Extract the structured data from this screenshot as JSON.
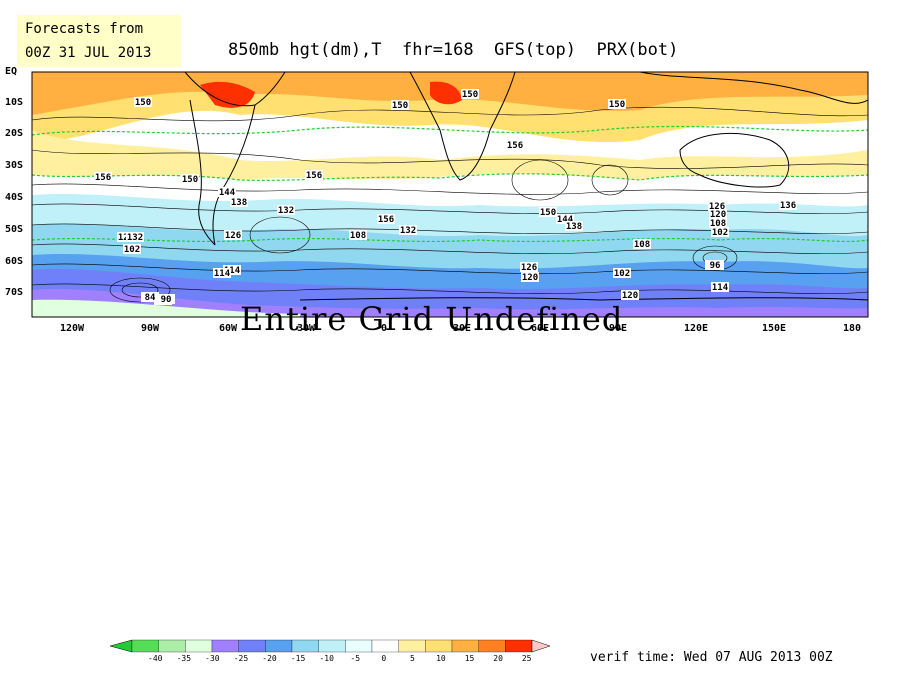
{
  "forecast_box": {
    "line1": "Forecasts from",
    "line2": "00Z 31 JUL 2013"
  },
  "title": "850mb hgt(dm),T  fhr=168  GFS(top)  PRX(bot)",
  "lat_labels": [
    "EQ",
    "10S",
    "20S",
    "30S",
    "40S",
    "50S",
    "60S",
    "70S"
  ],
  "lon_labels": [
    "120W",
    "90W",
    "60W",
    "30W",
    "0",
    "30E",
    "60E",
    "90E",
    "120E",
    "150E",
    "180"
  ],
  "overlay_text": "Entire Grid Undefined",
  "contour_labels": [
    "150",
    "150",
    "150",
    "150",
    "150",
    "156",
    "156",
    "156",
    "156",
    "150",
    "144",
    "138",
    "132",
    "126",
    "120",
    "114",
    "108",
    "102",
    "96",
    "90",
    "84",
    "132",
    "126",
    "120",
    "114",
    "108",
    "102",
    "96",
    "126",
    "120",
    "114",
    "108",
    "102",
    "96",
    "132",
    "120",
    "144",
    "138",
    "136"
  ],
  "colorbar": {
    "labels": [
      "-40",
      "-35",
      "-30",
      "-25",
      "-20",
      "-15",
      "-10",
      "-5",
      "0",
      "5",
      "10",
      "15",
      "20",
      "25"
    ],
    "colors": [
      "#22cc33",
      "#55dd55",
      "#aaeeaa",
      "#dfffdf",
      "#a080ff",
      "#7080f8",
      "#58a0f0",
      "#90d8f0",
      "#c0f0f8",
      "#e8ffff",
      "#ffffff",
      "#fff0a0",
      "#ffe070",
      "#ffb040",
      "#ff8020",
      "#ff3000",
      "#ffc8c8"
    ]
  },
  "verif_time": "verif time: Wed 07 AUG 2013 00Z"
}
